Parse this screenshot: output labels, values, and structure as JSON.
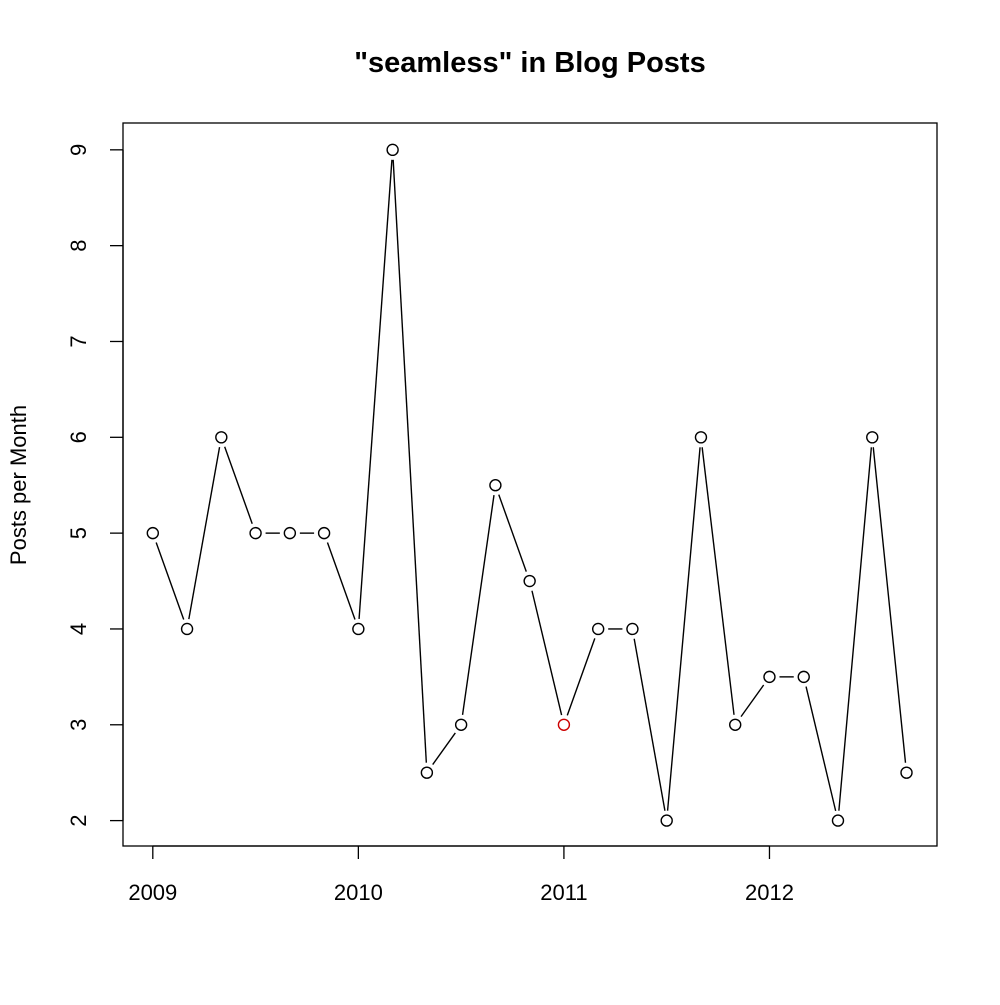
{
  "chart_data": {
    "type": "line",
    "title": "\"seamless\" in Blog Posts",
    "xlabel": "",
    "ylabel": "Posts per Month",
    "x_ticks": [
      2009,
      2010,
      2011,
      2012
    ],
    "y_ticks": [
      2,
      3,
      4,
      5,
      6,
      7,
      8,
      9
    ],
    "xlim": [
      2008.855,
      2012.815
    ],
    "ylim": [
      1.735,
      9.28
    ],
    "grid": false,
    "legend": "none",
    "marker": "open-circle",
    "colors": {
      "line": "#000000",
      "marker": "#000000",
      "highlight": "#cc0000"
    },
    "highlight_index": 12,
    "series": [
      {
        "x": [
          2009.0,
          2009.1667,
          2009.3333,
          2009.5,
          2009.6667,
          2009.8333,
          2010.0,
          2010.1667,
          2010.3333,
          2010.5,
          2010.6667,
          2010.8333,
          2011.0,
          2011.1667,
          2011.3333,
          2011.5,
          2011.6667,
          2011.8333,
          2012.0,
          2012.1667,
          2012.3333,
          2012.5,
          2012.6667
        ],
        "values": [
          5,
          4,
          6,
          5,
          5,
          5,
          4,
          9,
          2.5,
          3,
          5.5,
          4.5,
          3,
          4,
          4,
          2,
          6,
          3,
          3.5,
          3.5,
          2,
          6,
          2.5
        ]
      }
    ]
  }
}
